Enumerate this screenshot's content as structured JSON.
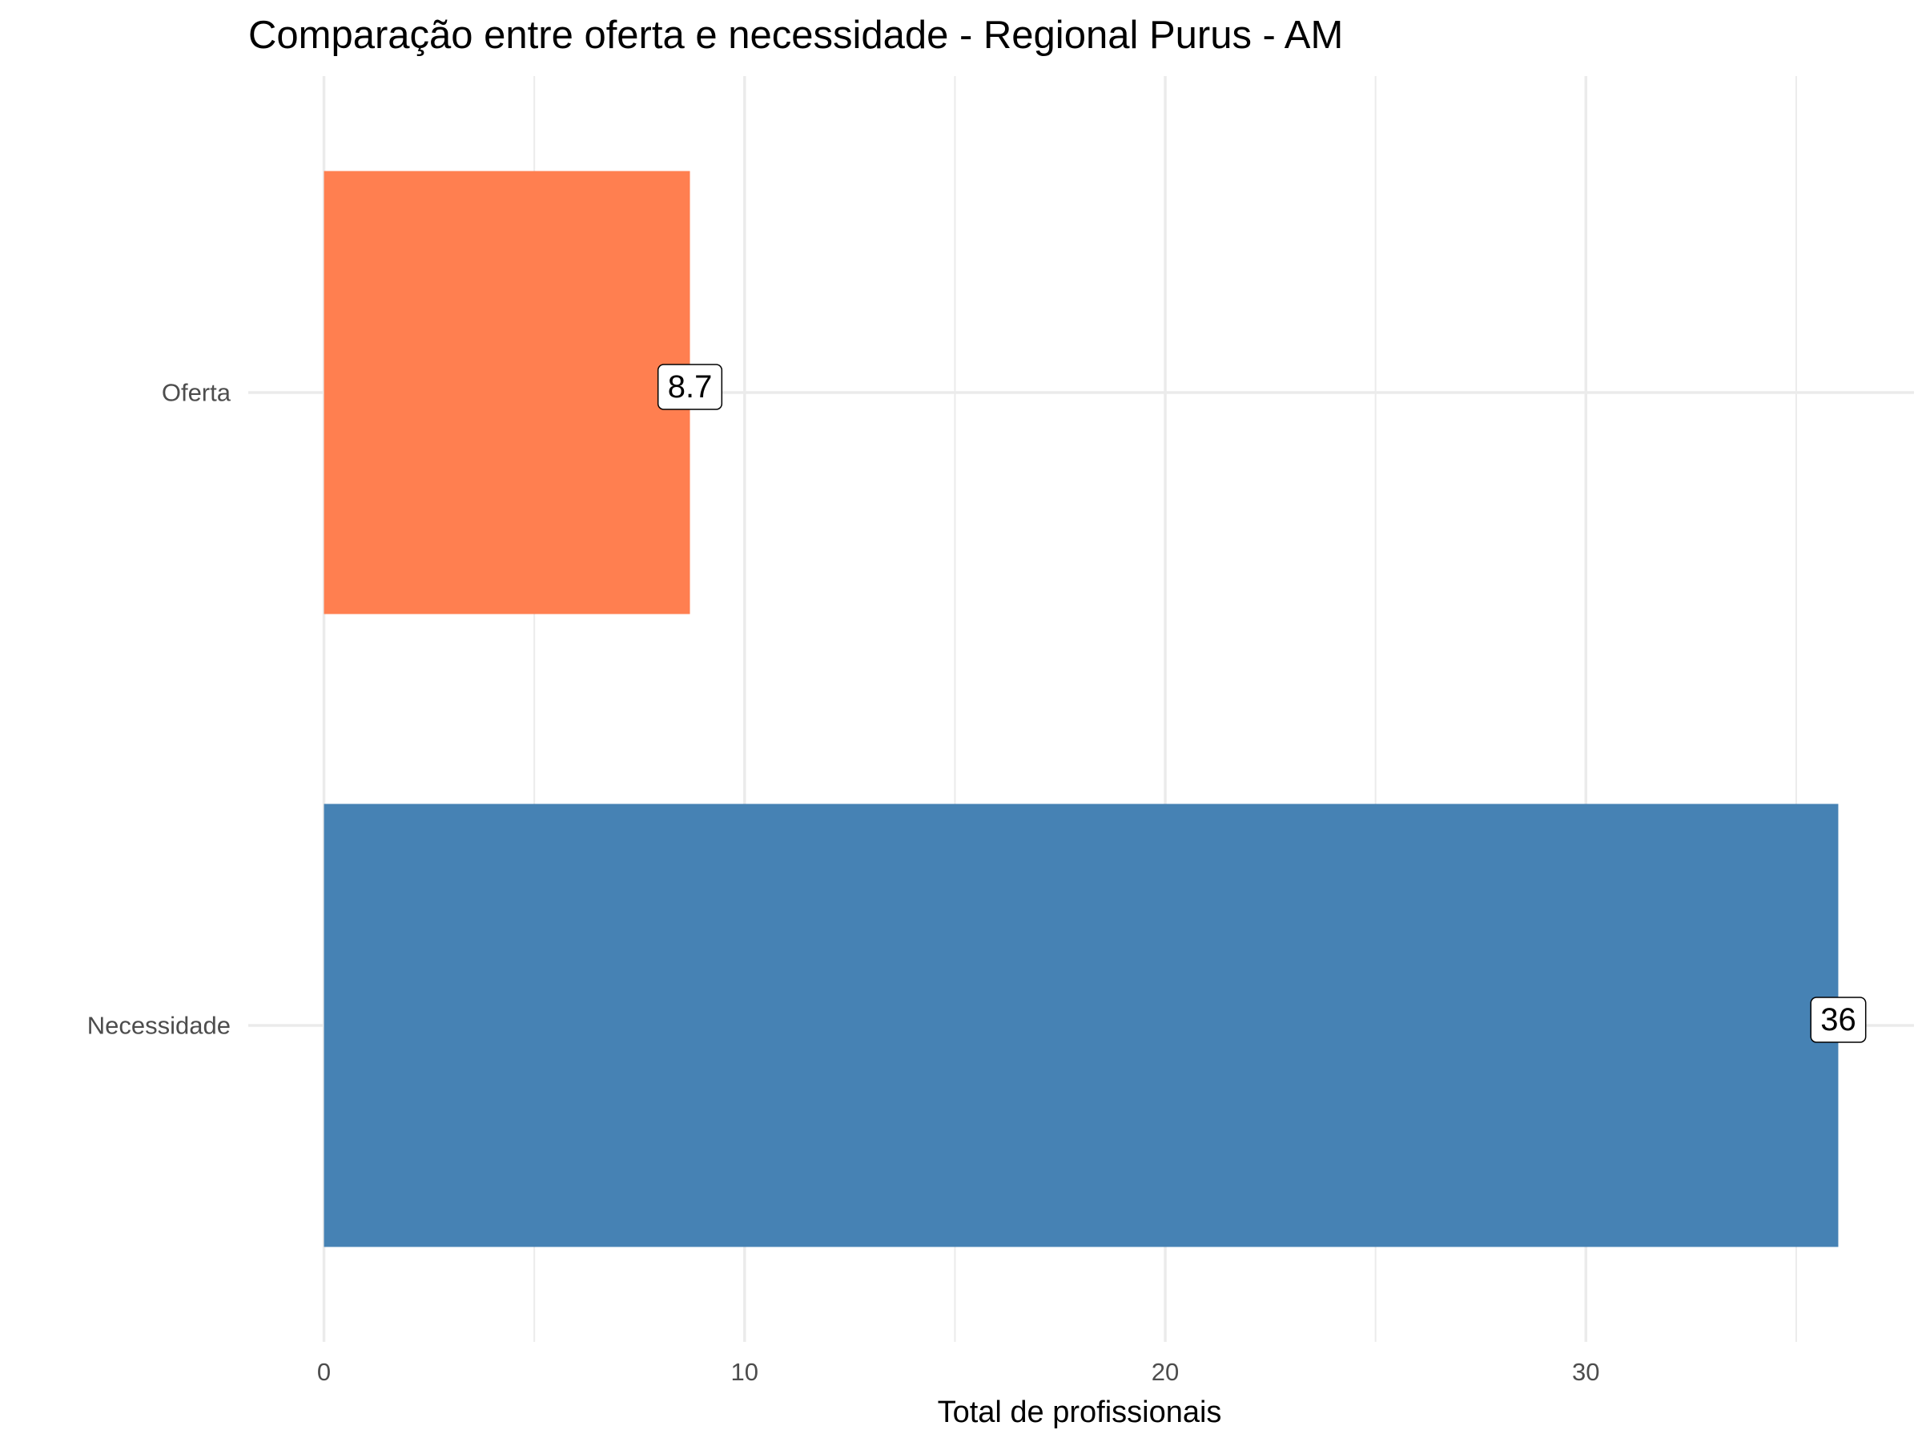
{
  "chart_data": {
    "type": "bar",
    "orientation": "horizontal",
    "title": "Comparação entre oferta e necessidade - Regional Purus - AM",
    "xlabel": "Total de profissionais",
    "ylabel": "",
    "categories": [
      "Oferta",
      "Necessidade"
    ],
    "values": [
      8.7,
      36
    ],
    "value_labels": [
      "8.7",
      "36"
    ],
    "colors": [
      "#FF7F50",
      "#4682B4"
    ],
    "xlim": [
      -1.8,
      37.8
    ],
    "xticks": [
      0,
      10,
      20,
      30
    ],
    "xtick_labels": [
      "0",
      "10",
      "20",
      "30"
    ],
    "minor_gridlines": [
      5,
      15,
      25,
      35
    ],
    "grid": true,
    "legend": "none"
  }
}
